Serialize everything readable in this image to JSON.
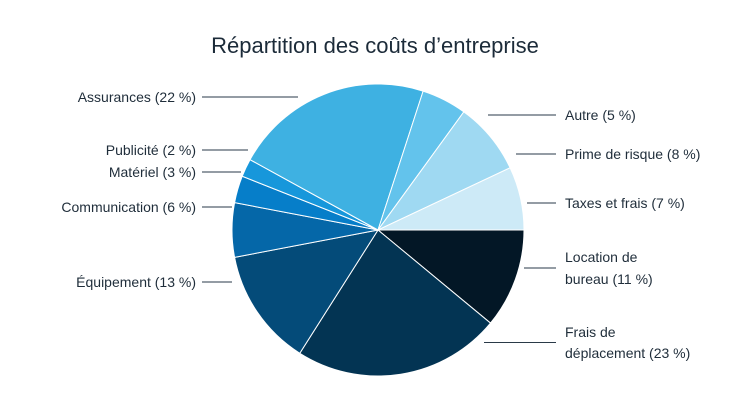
{
  "chart_data": {
    "type": "pie",
    "title": "Répartition des coûts d’entreprise",
    "start": "3 o'clock, clockwise",
    "slices": [
      {
        "label": "Location de bureau (11 %)",
        "lines": [
          "Location de",
          "bureau (11 %)"
        ],
        "value": 11,
        "color": "#031726"
      },
      {
        "label": "Frais de déplacement (23 %)",
        "lines": [
          "Frais de",
          "déplacement (23 %)"
        ],
        "value": 23,
        "color": "#033453"
      },
      {
        "label": "Équipement (13 %)",
        "lines": [
          "Équipement (13 %)"
        ],
        "value": 13,
        "color": "#044b79"
      },
      {
        "label": "Communication (6 %)",
        "lines": [
          "Communication (6 %)"
        ],
        "value": 6,
        "color": "#0567a8"
      },
      {
        "label": "Matériel (3 %)",
        "lines": [
          "Matériel (3 %)"
        ],
        "value": 3,
        "color": "#067ec9"
      },
      {
        "label": "Publicité (2 %)",
        "lines": [
          "Publicité (2 %)"
        ],
        "value": 2,
        "color": "#1797db"
      },
      {
        "label": "Assurances (22 %)",
        "lines": [
          "Assurances (22 %)"
        ],
        "value": 22,
        "color": "#3eb1e2"
      },
      {
        "label": "Autre (5 %)",
        "lines": [
          "Autre (5 %)"
        ],
        "value": 5,
        "color": "#63c3ec"
      },
      {
        "label": "Prime de risque (8 %)",
        "lines": [
          "Prime de risque (8 %)"
        ],
        "value": 8,
        "color": "#9fd9f2"
      },
      {
        "label": "Taxes et frais (7 %)",
        "lines": [
          "Taxes et frais (7 %)"
        ],
        "value": 7,
        "color": "#cdeaf7"
      }
    ]
  }
}
